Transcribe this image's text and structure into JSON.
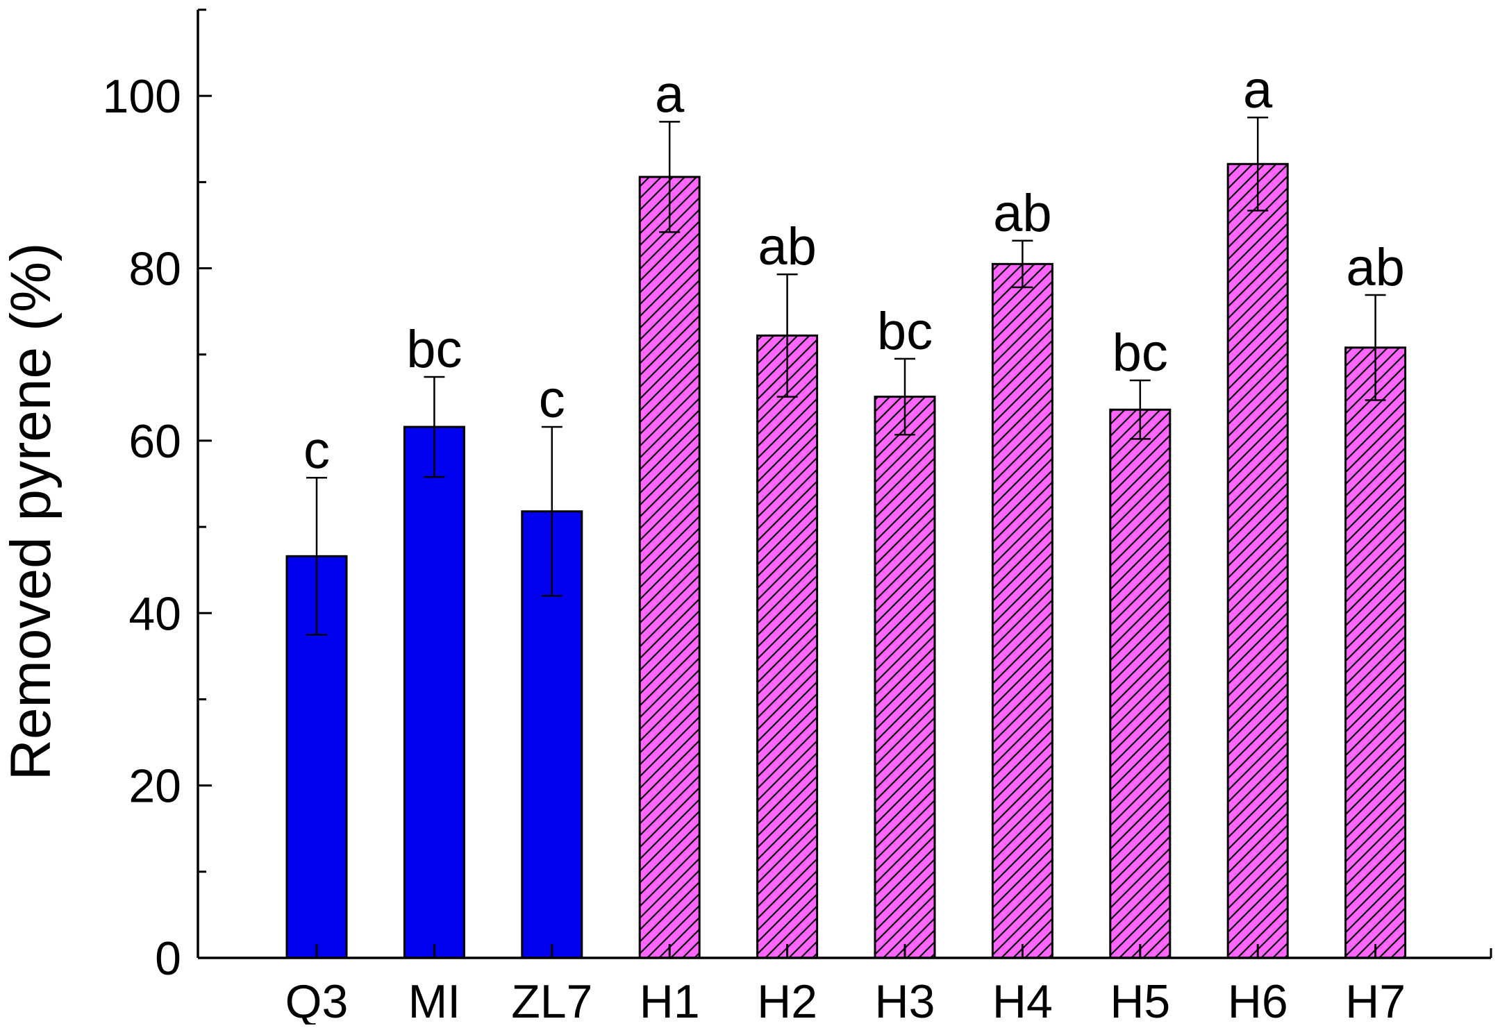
{
  "chart_data": {
    "type": "bar",
    "title": "",
    "xlabel": "",
    "ylabel": "Removed pyrene (%)",
    "ylim": [
      0,
      110
    ],
    "yticks": [
      0,
      20,
      40,
      60,
      80,
      100
    ],
    "yminor_step": 10,
    "grid": false,
    "categories": [
      "Q3",
      "MI",
      "ZL7",
      "H1",
      "H2",
      "H3",
      "H4",
      "H5",
      "H6",
      "H7"
    ],
    "values": [
      46.6,
      61.6,
      51.8,
      90.6,
      72.2,
      65.1,
      80.5,
      63.6,
      92.1,
      70.8
    ],
    "errors": [
      9.1,
      5.8,
      9.8,
      6.4,
      7.1,
      4.4,
      2.7,
      3.4,
      5.4,
      6.1
    ],
    "significance": [
      "c",
      "bc",
      "c",
      "a",
      "ab",
      "bc",
      "ab",
      "bc",
      "a",
      "ab"
    ],
    "styles": [
      "solid",
      "solid",
      "solid",
      "hatched",
      "hatched",
      "hatched",
      "hatched",
      "hatched",
      "hatched",
      "hatched"
    ],
    "colors": {
      "solid_fill": "#0000ee",
      "hatched_fill": "#ff66ff",
      "hatch_line": "#000000",
      "edge": "#000000"
    }
  }
}
